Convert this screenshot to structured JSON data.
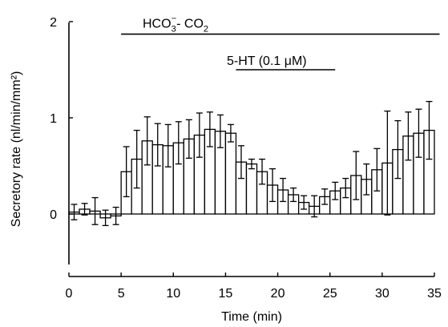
{
  "chart_data": {
    "type": "bar",
    "xlabel": "Time (min)",
    "ylabel": "Secretory rate (nl/min/mm²)",
    "xlim": [
      0,
      35
    ],
    "ylim": [
      -0.5,
      2
    ],
    "x_ticks": [
      "0",
      "5",
      "10",
      "15",
      "20",
      "25",
      "30",
      "35"
    ],
    "y_ticks": [
      "0",
      "1",
      "2"
    ],
    "grid": false,
    "bin_width_min": 1,
    "bins": [
      {
        "x": 0.5,
        "value": 0.02,
        "sem": 0.08
      },
      {
        "x": 1.5,
        "value": 0.05,
        "sem": 0.06
      },
      {
        "x": 2.5,
        "value": 0.03,
        "sem": 0.14
      },
      {
        "x": 3.5,
        "value": -0.04,
        "sem": 0.08
      },
      {
        "x": 4.5,
        "value": -0.02,
        "sem": 0.09
      },
      {
        "x": 5.5,
        "value": 0.44,
        "sem": 0.26
      },
      {
        "x": 6.5,
        "value": 0.57,
        "sem": 0.3
      },
      {
        "x": 7.5,
        "value": 0.76,
        "sem": 0.25
      },
      {
        "x": 8.5,
        "value": 0.72,
        "sem": 0.22
      },
      {
        "x": 9.5,
        "value": 0.71,
        "sem": 0.22
      },
      {
        "x": 10.5,
        "value": 0.74,
        "sem": 0.22
      },
      {
        "x": 11.5,
        "value": 0.78,
        "sem": 0.2
      },
      {
        "x": 12.5,
        "value": 0.82,
        "sem": 0.23
      },
      {
        "x": 13.5,
        "value": 0.88,
        "sem": 0.18
      },
      {
        "x": 14.5,
        "value": 0.86,
        "sem": 0.17
      },
      {
        "x": 15.5,
        "value": 0.84,
        "sem": 0.09
      },
      {
        "x": 16.5,
        "value": 0.54,
        "sem": 0.17
      },
      {
        "x": 17.5,
        "value": 0.52,
        "sem": 0.05
      },
      {
        "x": 18.5,
        "value": 0.44,
        "sem": 0.13
      },
      {
        "x": 19.5,
        "value": 0.3,
        "sem": 0.17
      },
      {
        "x": 20.5,
        "value": 0.25,
        "sem": 0.12
      },
      {
        "x": 21.5,
        "value": 0.2,
        "sem": 0.07
      },
      {
        "x": 22.5,
        "value": 0.12,
        "sem": 0.07
      },
      {
        "x": 23.5,
        "value": 0.08,
        "sem": 0.11
      },
      {
        "x": 24.5,
        "value": 0.18,
        "sem": 0.08
      },
      {
        "x": 25.5,
        "value": 0.24,
        "sem": 0.09
      },
      {
        "x": 26.5,
        "value": 0.27,
        "sem": 0.1
      },
      {
        "x": 27.5,
        "value": 0.4,
        "sem": 0.25
      },
      {
        "x": 28.5,
        "value": 0.36,
        "sem": 0.16
      },
      {
        "x": 29.5,
        "value": 0.46,
        "sem": 0.22
      },
      {
        "x": 30.5,
        "value": 0.53,
        "sem": 0.54
      },
      {
        "x": 31.5,
        "value": 0.67,
        "sem": 0.3
      },
      {
        "x": 32.5,
        "value": 0.81,
        "sem": 0.25
      },
      {
        "x": 33.5,
        "value": 0.84,
        "sem": 0.25
      },
      {
        "x": 34.5,
        "value": 0.87,
        "sem": 0.3
      }
    ],
    "annotations": [
      {
        "label_main": "HCO",
        "label_sub1": "3",
        "label_sup": "−",
        "label_mid": "- CO",
        "label_sub2": "2",
        "x_start": 5,
        "x_end": 35.5,
        "y": 1.87
      },
      {
        "label": "5-HT (0.1 μM)",
        "x_start": 16,
        "x_end": 25.5,
        "y": 1.5
      }
    ]
  }
}
